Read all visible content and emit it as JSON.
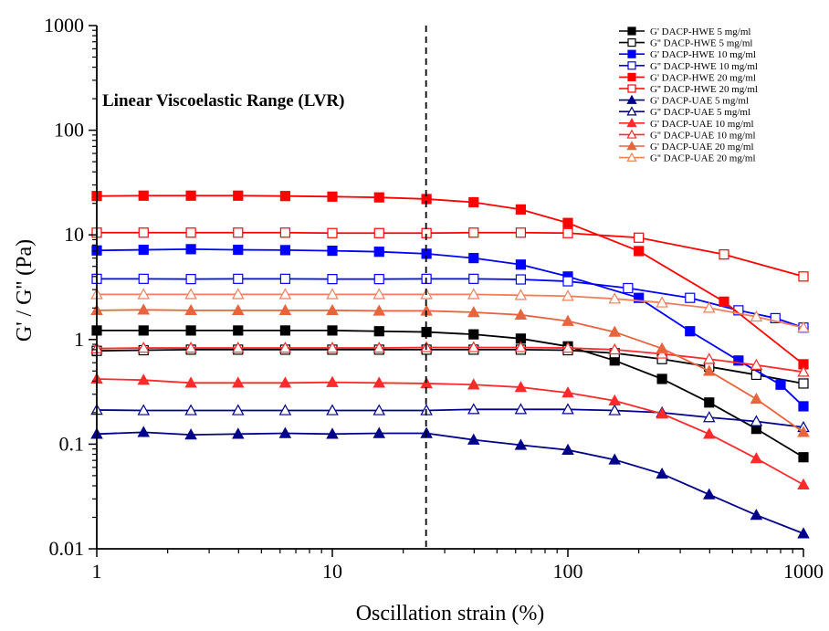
{
  "chart_data": {
    "type": "line",
    "xlabel": "Oscillation strain (%)",
    "ylabel": "G' / G'' (Pa)",
    "x_scale": "log",
    "y_scale": "log",
    "xlim": [
      1,
      1000
    ],
    "ylim": [
      0.01,
      1000
    ],
    "x_ticks": [
      "1",
      "10",
      "100",
      "1000"
    ],
    "y_ticks": [
      "0.01",
      "0.1",
      "1",
      "10",
      "100",
      "1000"
    ],
    "annotation": {
      "text": "Linear Viscoelastic Range (LVR)",
      "boundary_x": 25
    },
    "legend_position": "top-right",
    "grid": false,
    "x": [
      1,
      1.58,
      2.51,
      3.98,
      6.31,
      10,
      15.8,
      25.1,
      39.8,
      63.1,
      100,
      158,
      251,
      398,
      631,
      1000
    ],
    "series": [
      {
        "name": "G'  DACP-HWE 5 mg/ml",
        "color": "#000000",
        "marker": "square",
        "filled": true,
        "x": [
          1,
          1.58,
          2.51,
          3.98,
          6.31,
          10,
          15.8,
          25.1,
          39.8,
          63.1,
          100,
          158,
          251,
          398,
          631,
          1000
        ],
        "values": [
          1.22,
          1.22,
          1.22,
          1.22,
          1.22,
          1.22,
          1.2,
          1.18,
          1.12,
          1.02,
          0.86,
          0.63,
          0.42,
          0.25,
          0.14,
          0.075
        ]
      },
      {
        "name": "G'' DACP-HWE 5 mg/ml",
        "color": "#000000",
        "marker": "square",
        "filled": false,
        "x": [
          1,
          1.58,
          2.51,
          3.98,
          6.31,
          10,
          15.8,
          25.1,
          39.8,
          63.1,
          100,
          158,
          251,
          398,
          631,
          1000
        ],
        "values": [
          0.78,
          0.79,
          0.8,
          0.8,
          0.8,
          0.8,
          0.8,
          0.8,
          0.8,
          0.8,
          0.79,
          0.74,
          0.65,
          0.55,
          0.46,
          0.38
        ]
      },
      {
        "name": "G'  DACP-HWE 10 mg/ml",
        "color": "#0000ff",
        "marker": "square",
        "filled": true,
        "x": [
          1,
          1.58,
          2.51,
          3.98,
          6.31,
          10,
          15.8,
          25.1,
          39.8,
          63.1,
          100,
          200,
          330,
          530,
          800,
          1000
        ],
        "values": [
          7.1,
          7.2,
          7.3,
          7.2,
          7.15,
          7.05,
          6.9,
          6.6,
          6.0,
          5.2,
          4.0,
          2.5,
          1.2,
          0.63,
          0.37,
          0.23
        ]
      },
      {
        "name": "G'' DACP-HWE 10 mg/ml",
        "color": "#0000ff",
        "marker": "square",
        "filled": false,
        "x": [
          1,
          1.58,
          2.51,
          3.98,
          6.31,
          10,
          15.8,
          25.1,
          39.8,
          63.1,
          100,
          180,
          330,
          530,
          760,
          1000
        ],
        "values": [
          3.8,
          3.8,
          3.78,
          3.8,
          3.8,
          3.78,
          3.78,
          3.8,
          3.8,
          3.75,
          3.6,
          3.1,
          2.5,
          1.9,
          1.6,
          1.3
        ]
      },
      {
        "name": "G'  DACP-HWE 20 mg/ml",
        "color": "#ff0000",
        "marker": "square",
        "filled": true,
        "x": [
          1,
          1.58,
          2.51,
          3.98,
          6.31,
          10,
          15.8,
          25.1,
          39.8,
          63.1,
          100,
          200,
          460,
          1000
        ],
        "values": [
          23.5,
          23.7,
          23.7,
          23.7,
          23.5,
          23.2,
          22.8,
          22.0,
          20.5,
          17.5,
          13.0,
          7.0,
          2.3,
          0.58
        ]
      },
      {
        "name": "G'' DACP-HWE 20 mg/ml",
        "color": "#ff0000",
        "marker": "square",
        "filled": false,
        "x": [
          1,
          1.58,
          2.51,
          3.98,
          6.31,
          10,
          15.8,
          25.1,
          39.8,
          63.1,
          100,
          200,
          460,
          1000
        ],
        "values": [
          10.5,
          10.5,
          10.5,
          10.5,
          10.5,
          10.4,
          10.4,
          10.4,
          10.5,
          10.5,
          10.4,
          9.4,
          6.5,
          4.0
        ]
      },
      {
        "name": "G'  DACP-UAE 5 mg/ml",
        "color": "#00008b",
        "marker": "triangle",
        "filled": true,
        "x": [
          1,
          1.58,
          2.51,
          3.98,
          6.31,
          10,
          15.8,
          25.1,
          39.8,
          63.1,
          100,
          158,
          251,
          398,
          631,
          1000
        ],
        "values": [
          0.125,
          0.13,
          0.123,
          0.125,
          0.127,
          0.125,
          0.127,
          0.127,
          0.11,
          0.098,
          0.088,
          0.071,
          0.052,
          0.033,
          0.021,
          0.014
        ]
      },
      {
        "name": "G'' DACP-UAE 5 mg/ml",
        "color": "#00008b",
        "marker": "triangle",
        "filled": false,
        "x": [
          1,
          1.58,
          2.51,
          3.98,
          6.31,
          10,
          15.8,
          25.1,
          39.8,
          63.1,
          100,
          158,
          251,
          398,
          631,
          1000
        ],
        "values": [
          0.212,
          0.21,
          0.21,
          0.21,
          0.21,
          0.21,
          0.21,
          0.21,
          0.215,
          0.215,
          0.215,
          0.21,
          0.2,
          0.18,
          0.165,
          0.145
        ]
      },
      {
        "name": "G'  DACP-UAE 10 mg/ml",
        "color": "#ff2a2a",
        "marker": "triangle",
        "filled": true,
        "x": [
          1,
          1.58,
          2.51,
          3.98,
          6.31,
          10,
          15.8,
          25.1,
          39.8,
          63.1,
          100,
          158,
          251,
          398,
          631,
          1000
        ],
        "values": [
          0.42,
          0.41,
          0.385,
          0.385,
          0.385,
          0.39,
          0.385,
          0.38,
          0.37,
          0.35,
          0.31,
          0.26,
          0.195,
          0.125,
          0.073,
          0.041
        ]
      },
      {
        "name": "G'' DACP-UAE 10 mg/ml",
        "color": "#ff2a2a",
        "marker": "triangle",
        "filled": false,
        "x": [
          1,
          1.58,
          2.51,
          3.98,
          6.31,
          10,
          15.8,
          25.1,
          39.8,
          63.1,
          100,
          158,
          251,
          398,
          631,
          1000
        ],
        "values": [
          0.82,
          0.83,
          0.83,
          0.83,
          0.83,
          0.83,
          0.83,
          0.84,
          0.84,
          0.84,
          0.83,
          0.8,
          0.73,
          0.65,
          0.57,
          0.49
        ]
      },
      {
        "name": "G'  DACP-UAE 20 mg/ml",
        "color": "#e8643c",
        "marker": "triangle",
        "filled": true,
        "x": [
          1,
          1.58,
          2.51,
          3.98,
          6.31,
          10,
          15.8,
          25.1,
          39.8,
          63.1,
          100,
          158,
          251,
          398,
          631,
          1000
        ],
        "values": [
          1.9,
          1.92,
          1.9,
          1.9,
          1.9,
          1.9,
          1.88,
          1.88,
          1.82,
          1.72,
          1.5,
          1.18,
          0.82,
          0.5,
          0.27,
          0.13
        ]
      },
      {
        "name": "G'' DACP-UAE 20 mg/ml",
        "color": "#f0805a",
        "marker": "triangle",
        "filled": false,
        "x": [
          1,
          1.58,
          2.51,
          3.98,
          6.31,
          10,
          15.8,
          25.1,
          39.8,
          63.1,
          100,
          158,
          251,
          398,
          631,
          1000
        ],
        "values": [
          2.7,
          2.7,
          2.7,
          2.7,
          2.7,
          2.7,
          2.7,
          2.7,
          2.7,
          2.65,
          2.6,
          2.45,
          2.25,
          2.0,
          1.65,
          1.3
        ]
      }
    ]
  }
}
